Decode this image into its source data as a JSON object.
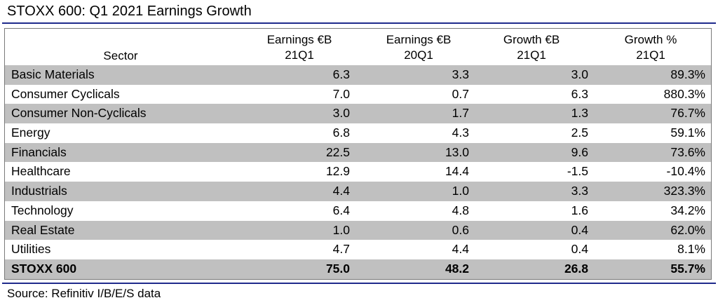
{
  "title": "STOXX 600: Q1 2021 Earnings Growth",
  "source": "Source: Refinitiv I/B/E/S data",
  "colors": {
    "rule": "#1f2a8c",
    "shaded_row": "#c0c0c0"
  },
  "chart_data": {
    "type": "table",
    "title": "STOXX 600: Q1 2021 Earnings Growth",
    "columns": [
      {
        "line1": "",
        "line2": "Sector"
      },
      {
        "line1": "Earnings €B",
        "line2": "21Q1"
      },
      {
        "line1": "Earnings €B",
        "line2": "20Q1"
      },
      {
        "line1": "Growth €B",
        "line2": "21Q1"
      },
      {
        "line1": "Growth %",
        "line2": "21Q1"
      }
    ],
    "rows": [
      {
        "sector": "Basic Materials",
        "earnings_21q1": "6.3",
        "earnings_20q1": "3.3",
        "growth_eur": "3.0",
        "growth_pct": "89.3%"
      },
      {
        "sector": "Consumer Cyclicals",
        "earnings_21q1": "7.0",
        "earnings_20q1": "0.7",
        "growth_eur": "6.3",
        "growth_pct": "880.3%"
      },
      {
        "sector": "Consumer Non-Cyclicals",
        "earnings_21q1": "3.0",
        "earnings_20q1": "1.7",
        "growth_eur": "1.3",
        "growth_pct": "76.7%"
      },
      {
        "sector": "Energy",
        "earnings_21q1": "6.8",
        "earnings_20q1": "4.3",
        "growth_eur": "2.5",
        "growth_pct": "59.1%"
      },
      {
        "sector": "Financials",
        "earnings_21q1": "22.5",
        "earnings_20q1": "13.0",
        "growth_eur": "9.6",
        "growth_pct": "73.6%"
      },
      {
        "sector": "Healthcare",
        "earnings_21q1": "12.9",
        "earnings_20q1": "14.4",
        "growth_eur": "-1.5",
        "growth_pct": "-10.4%"
      },
      {
        "sector": "Industrials",
        "earnings_21q1": "4.4",
        "earnings_20q1": "1.0",
        "growth_eur": "3.3",
        "growth_pct": "323.3%"
      },
      {
        "sector": "Technology",
        "earnings_21q1": "6.4",
        "earnings_20q1": "4.8",
        "growth_eur": "1.6",
        "growth_pct": "34.2%"
      },
      {
        "sector": "Real Estate",
        "earnings_21q1": "1.0",
        "earnings_20q1": "0.6",
        "growth_eur": "0.4",
        "growth_pct": "62.0%"
      },
      {
        "sector": "Utilities",
        "earnings_21q1": "4.7",
        "earnings_20q1": "4.4",
        "growth_eur": "0.4",
        "growth_pct": "8.1%"
      }
    ],
    "total": {
      "sector": "STOXX 600",
      "earnings_21q1": "75.0",
      "earnings_20q1": "48.2",
      "growth_eur": "26.8",
      "growth_pct": "55.7%"
    }
  }
}
